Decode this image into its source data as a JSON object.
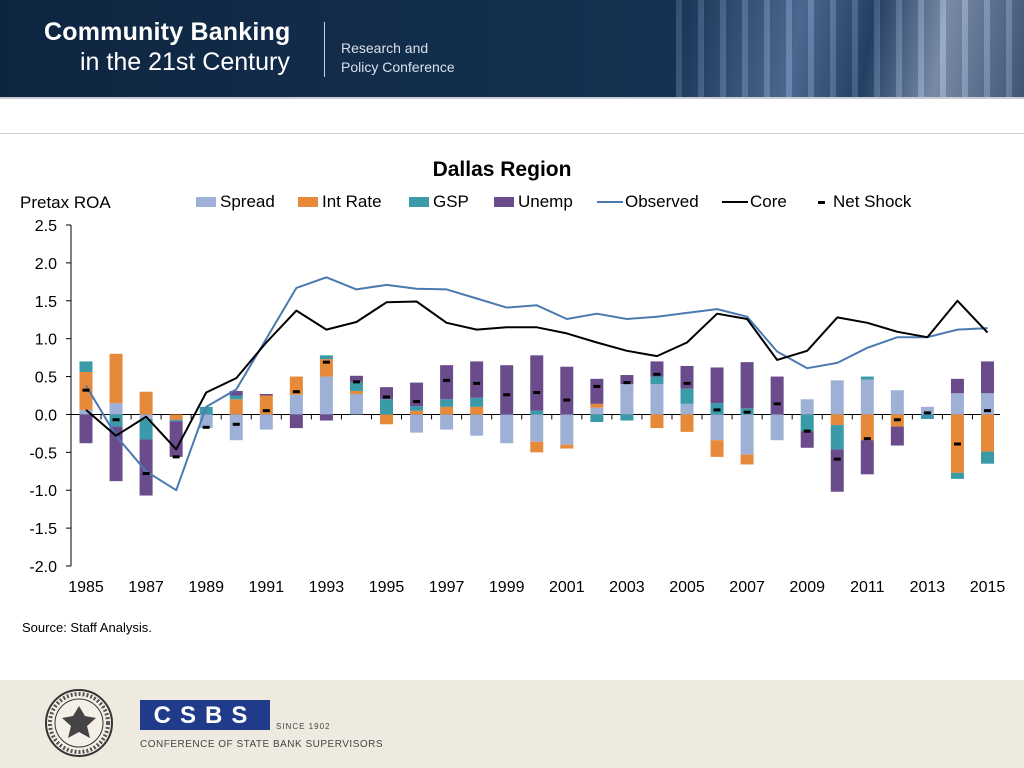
{
  "banner": {
    "title_line1": "Community Banking",
    "title_line2": "in the 21st Century",
    "subtitle_line1": "Research and",
    "subtitle_line2": "Policy Conference"
  },
  "footer": {
    "source": "Source: Staff Analysis.",
    "csbs_logo_text": "CSBS",
    "csbs_since": "SINCE 1902",
    "csbs_full_name": "CONFERENCE OF STATE BANK SUPERVISORS",
    "fed_seal_text": "UNITED STATES FEDERAL RESERVE SYSTEM"
  },
  "colors": {
    "spread": "#9eb0d6",
    "int_rate": "#e6893a",
    "gsp": "#3a9aa8",
    "unemp": "#6a4c8c",
    "observed": "#4a7ab0",
    "core": "#000000",
    "net_shock": "#000000"
  },
  "chart_data": {
    "type": "bar",
    "title": "Dallas Region",
    "ylabel": "Pretax ROA",
    "xlabel": "",
    "ylim": [
      -2.0,
      2.5
    ],
    "yticks": [
      2.5,
      2.0,
      1.5,
      1.0,
      0.5,
      0.0,
      -0.5,
      -1.0,
      -1.5,
      -2.0
    ],
    "ytick_labels": [
      "2.5",
      "2.0",
      "1.5",
      "1.0",
      "0.5",
      "0.0",
      "-0.5",
      "-1.0",
      "-1.5",
      "-2.0"
    ],
    "x": [
      1985,
      1986,
      1987,
      1988,
      1989,
      1990,
      1991,
      1992,
      1993,
      1994,
      1995,
      1996,
      1997,
      1998,
      1999,
      2000,
      2001,
      2002,
      2003,
      2004,
      2005,
      2006,
      2007,
      2008,
      2009,
      2010,
      2011,
      2012,
      2013,
      2014,
      2015
    ],
    "xtick_labels": [
      "1985",
      "1987",
      "1989",
      "1991",
      "1993",
      "1995",
      "1997",
      "1999",
      "2001",
      "2003",
      "2005",
      "2007",
      "2009",
      "2011",
      "2013",
      "2015"
    ],
    "legend": {
      "placement": "top",
      "entries": [
        "Spread",
        "Int Rate",
        "GSP",
        "Unemp",
        "Observed",
        "Core",
        "Net Shock"
      ]
    },
    "stacked_bars": [
      {
        "name": "Spread",
        "values": [
          0.06,
          0.15,
          -0.06,
          0.0,
          -0.18,
          -0.34,
          -0.2,
          0.26,
          0.5,
          0.27,
          0.0,
          -0.24,
          -0.2,
          -0.28,
          -0.38,
          -0.36,
          -0.4,
          0.09,
          0.4,
          0.4,
          0.14,
          -0.34,
          -0.53,
          -0.34,
          0.2,
          0.45,
          0.46,
          0.32,
          0.1,
          0.28,
          0.28
        ]
      },
      {
        "name": "Int Rate",
        "values": [
          0.5,
          0.65,
          0.3,
          -0.07,
          0.0,
          0.2,
          0.25,
          0.24,
          0.23,
          0.04,
          -0.13,
          0.05,
          0.1,
          0.1,
          0.0,
          -0.14,
          -0.05,
          0.05,
          0.0,
          -0.18,
          -0.23,
          -0.22,
          -0.13,
          0.0,
          0.0,
          -0.14,
          -0.34,
          -0.16,
          0.0,
          -0.77,
          -0.49
        ]
      },
      {
        "name": "GSP",
        "values": [
          0.14,
          -0.16,
          -0.27,
          -0.02,
          0.1,
          0.05,
          0.0,
          0.0,
          0.05,
          0.12,
          0.2,
          0.06,
          0.1,
          0.12,
          0.0,
          0.05,
          0.0,
          -0.1,
          -0.08,
          0.1,
          0.2,
          0.15,
          0.08,
          0.0,
          -0.22,
          -0.32,
          0.04,
          0.0,
          -0.06,
          -0.08,
          -0.16
        ]
      },
      {
        "name": "Unemp",
        "values": [
          -0.38,
          -0.72,
          -0.74,
          -0.47,
          0.0,
          0.06,
          0.02,
          -0.18,
          -0.08,
          0.08,
          0.16,
          0.31,
          0.45,
          0.48,
          0.65,
          0.73,
          0.63,
          0.33,
          0.12,
          0.2,
          0.3,
          0.47,
          0.61,
          0.5,
          -0.22,
          -0.56,
          -0.45,
          -0.25,
          0.0,
          0.19,
          0.42
        ]
      }
    ],
    "series": [
      {
        "name": "Observed",
        "type": "line",
        "values": [
          0.38,
          -0.28,
          -0.75,
          -1.0,
          0.1,
          0.33,
          1.0,
          1.67,
          1.81,
          1.65,
          1.71,
          1.66,
          1.65,
          1.53,
          1.41,
          1.44,
          1.26,
          1.33,
          1.26,
          1.29,
          1.34,
          1.39,
          1.29,
          0.83,
          0.61,
          0.68,
          0.88,
          1.02,
          1.02,
          1.12,
          1.14
        ]
      },
      {
        "name": "Core",
        "type": "line",
        "values": [
          0.06,
          -0.28,
          -0.03,
          -0.46,
          0.29,
          0.48,
          0.95,
          1.37,
          1.12,
          1.22,
          1.48,
          1.49,
          1.21,
          1.12,
          1.15,
          1.15,
          1.07,
          0.95,
          0.84,
          0.77,
          0.95,
          1.33,
          1.26,
          0.72,
          0.84,
          1.28,
          1.21,
          1.09,
          1.02,
          1.5,
          1.08
        ]
      },
      {
        "name": "Net Shock",
        "type": "marker",
        "values": [
          0.32,
          -0.07,
          -0.78,
          -0.56,
          -0.17,
          -0.13,
          0.05,
          0.3,
          0.69,
          0.43,
          0.23,
          0.17,
          0.45,
          0.41,
          0.26,
          0.29,
          0.19,
          0.37,
          0.42,
          0.53,
          0.41,
          0.06,
          0.03,
          0.14,
          -0.22,
          -0.59,
          -0.32,
          -0.07,
          0.02,
          -0.39,
          0.05
        ]
      }
    ]
  }
}
